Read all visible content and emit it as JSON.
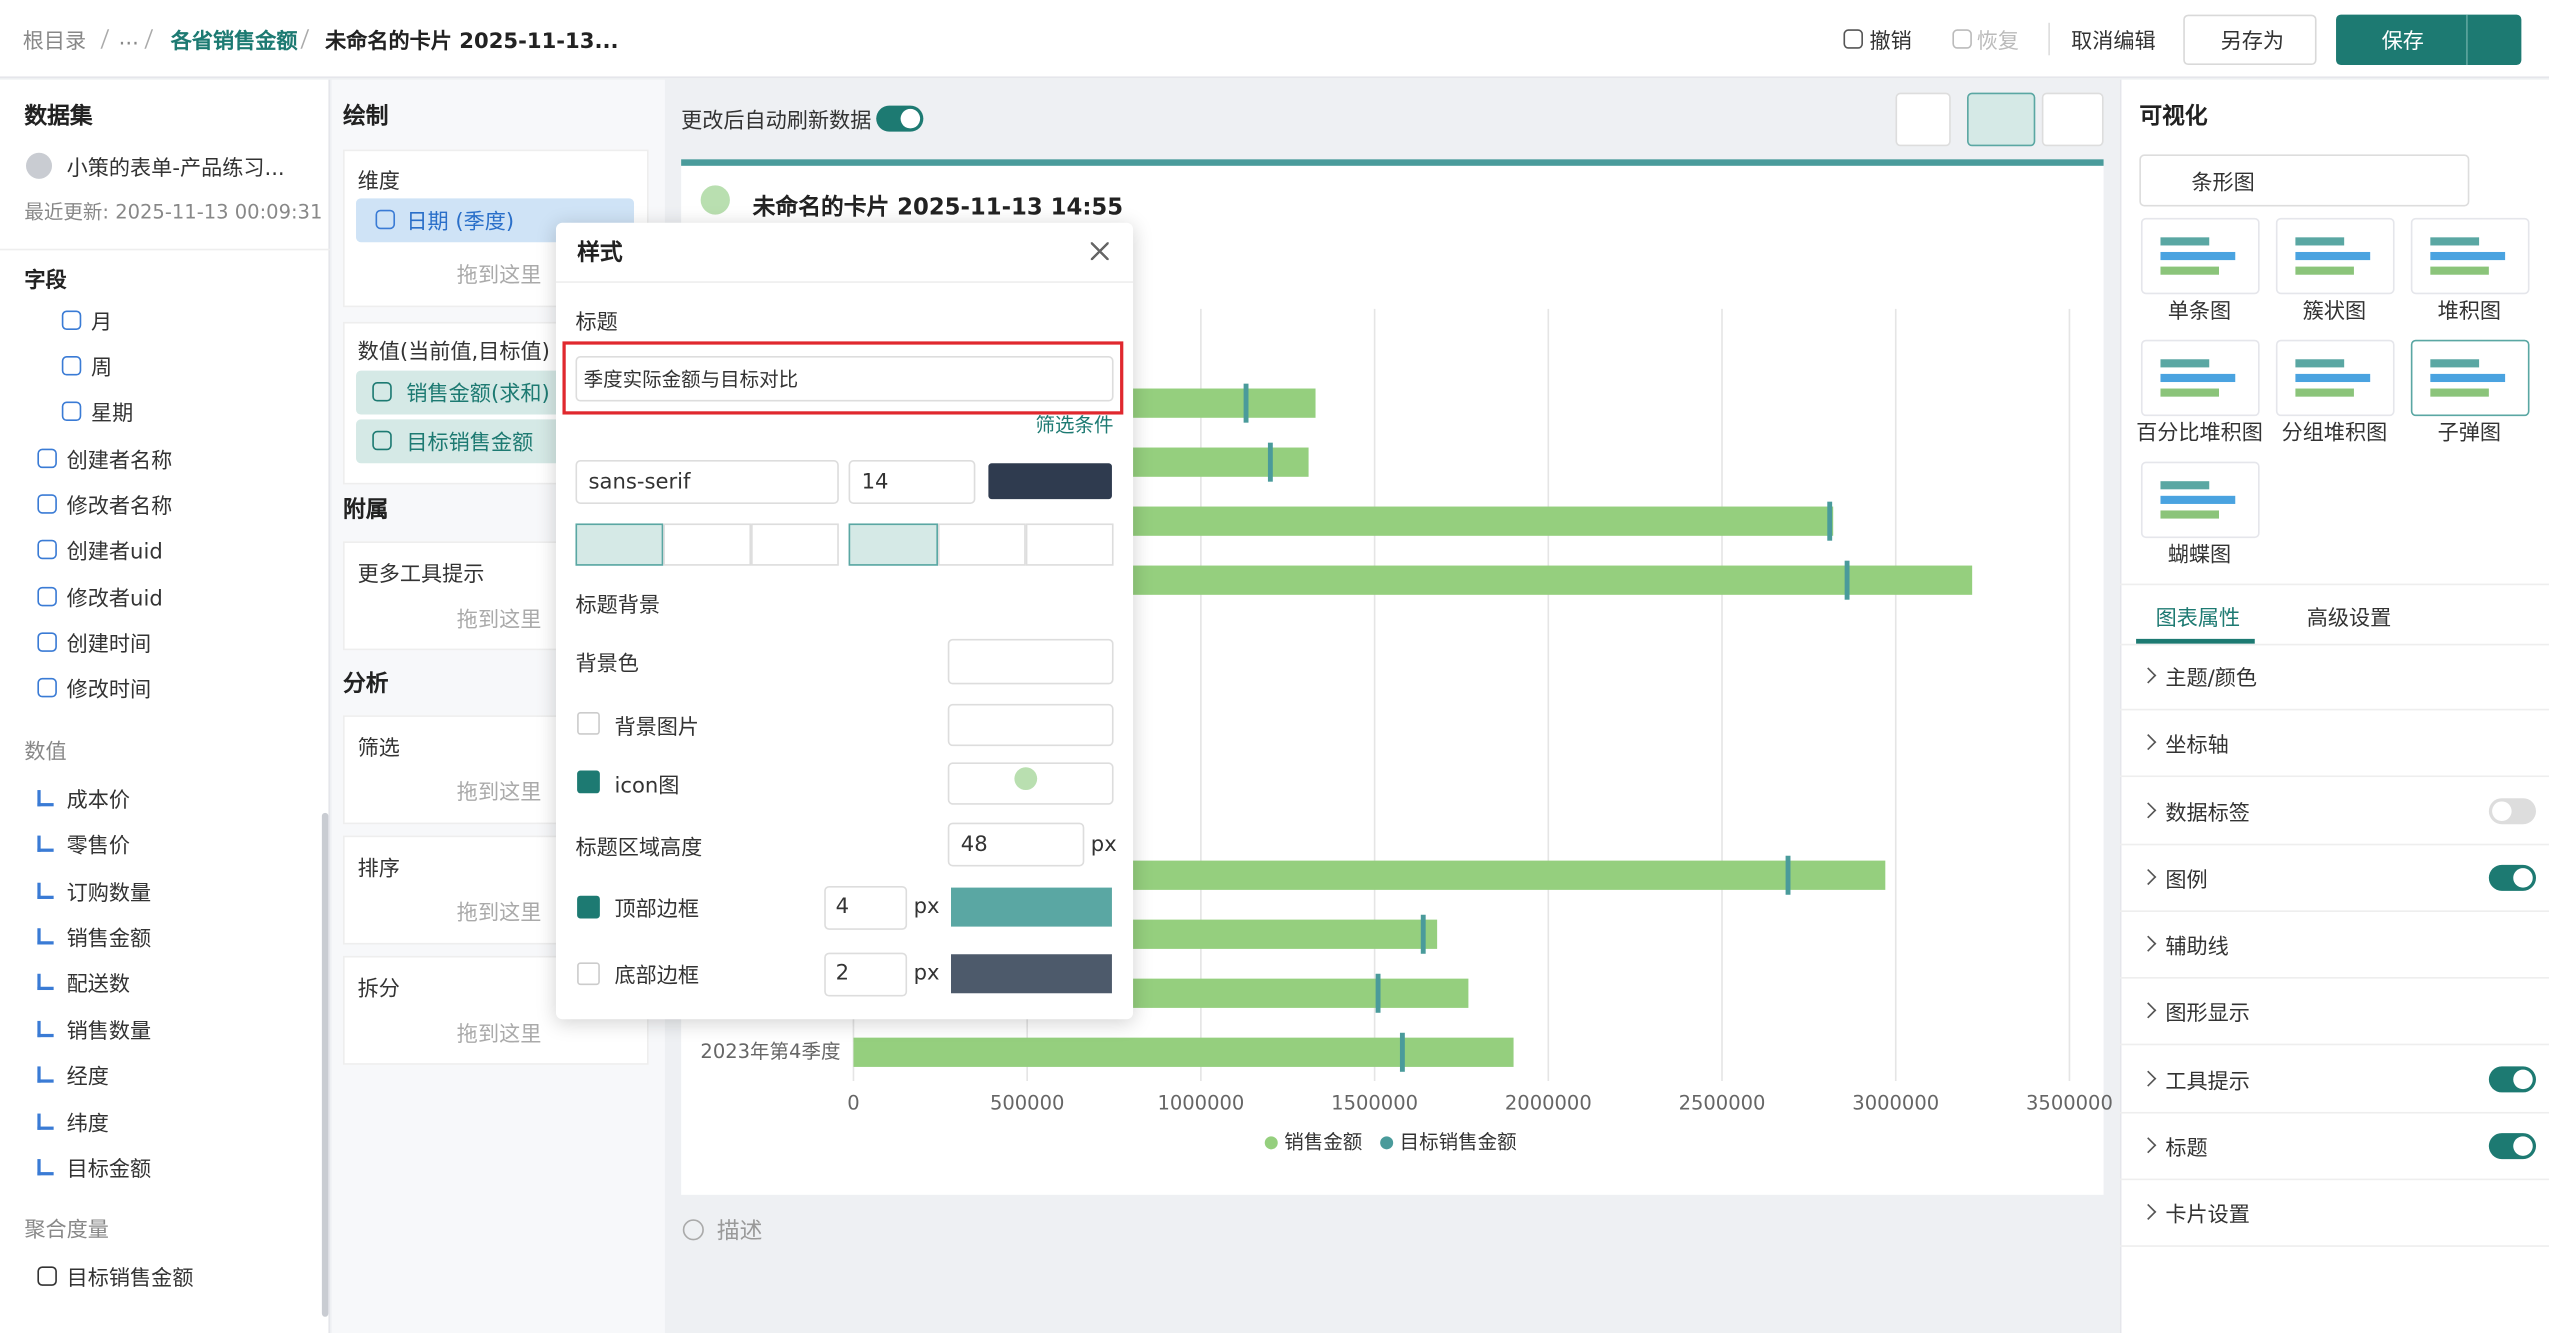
{
  "header": {
    "breadcrumb": [
      "根目录",
      "...",
      "各省销售金额",
      "未命名的卡片 2025-11-13..."
    ],
    "undo": "撤销",
    "redo": "恢复",
    "cancel": "取消编辑",
    "save_as": "另存为",
    "save": "保存"
  },
  "dataset": {
    "title": "数据集",
    "name": "小策的表单-产品练习...",
    "updated": "最近更新: 2025-11-13 00:09:31",
    "fields_title": "字段",
    "fields": [
      "月",
      "周",
      "星期",
      "创建者名称",
      "修改者名称",
      "创建者uid",
      "修改者uid",
      "创建时间",
      "修改时间"
    ],
    "values_title": "数值",
    "values": [
      "成本价",
      "零售价",
      "订购数量",
      "销售金额",
      "配送数",
      "销售数量",
      "经度",
      "纬度",
      "目标金额"
    ],
    "agg_title": "聚合度量",
    "agg": [
      "目标销售金额"
    ]
  },
  "draw": {
    "title": "绘制",
    "dim": "维度",
    "dim_field": "日期 (季度)",
    "drop": "拖到这里",
    "val_title": "数值(当前值,目标值)",
    "val_fields": [
      "销售金额(求和)",
      "目标销售金额"
    ],
    "attach": "附属",
    "more_tip": "更多工具提示",
    "analysis": "分析",
    "filter": "筛选",
    "sort": "排序",
    "split": "拆分"
  },
  "center": {
    "auto_refresh": "更改后自动刷新数据",
    "card_title": "未命名的卡片 2025-11-13 14:55",
    "describe": "描述"
  },
  "chart": {
    "type": "bar",
    "categories": [
      null,
      null,
      null,
      null,
      null,
      null,
      null,
      null,
      null,
      null,
      null,
      "2023年第4季度"
    ],
    "series": [
      {
        "name": "销售金额",
        "color": "#95cf7e",
        "values": [
          1330000,
          1310000,
          2820000,
          3220000,
          null,
          null,
          null,
          null,
          2970000,
          1680000,
          1770000,
          1900000
        ]
      },
      {
        "name": "目标销售金额",
        "color": "#4a9b9b",
        "values": [
          1130000,
          1200000,
          2810000,
          2860000,
          null,
          null,
          null,
          null,
          2690000,
          1640000,
          1510000,
          1580000
        ]
      }
    ],
    "xlim": [
      0,
      3500000
    ],
    "xticks": [
      0,
      500000,
      1000000,
      1500000,
      2000000,
      2500000,
      3000000,
      3500000
    ],
    "grid": true
  },
  "style_panel": {
    "title": "样式",
    "title_label": "标题",
    "title_value": "季度实际金额与目标对比",
    "filter_cond": "筛选条件",
    "font": "sans-serif",
    "font_size": "14",
    "bg_section": "标题背景",
    "bg_color": "背景色",
    "bg_image": "背景图片",
    "icon": "icon图",
    "height_label": "标题区域高度",
    "height": "48",
    "px": "px",
    "top_border": "顶部边框",
    "top_width": "4",
    "top_color": "#5aa7a3",
    "bottom_border": "底部边框",
    "bottom_width": "2",
    "bottom_color": "#4d5a6b"
  },
  "viz": {
    "title": "可视化",
    "chart_type": "条形图",
    "types": [
      "单条图",
      "簇状图",
      "堆积图",
      "百分比堆积图",
      "分组堆积图",
      "子弹图",
      "蝴蝶图"
    ],
    "tabs": [
      "图表属性",
      "高级设置"
    ],
    "props": [
      {
        "name": "主题/颜色"
      },
      {
        "name": "坐标轴"
      },
      {
        "name": "数据标签",
        "toggle": false
      },
      {
        "name": "图例",
        "toggle": true
      },
      {
        "name": "辅助线"
      },
      {
        "name": "图形显示"
      },
      {
        "name": "工具提示",
        "toggle": true
      },
      {
        "name": "标题",
        "toggle": true
      },
      {
        "name": "卡片设置"
      }
    ]
  }
}
